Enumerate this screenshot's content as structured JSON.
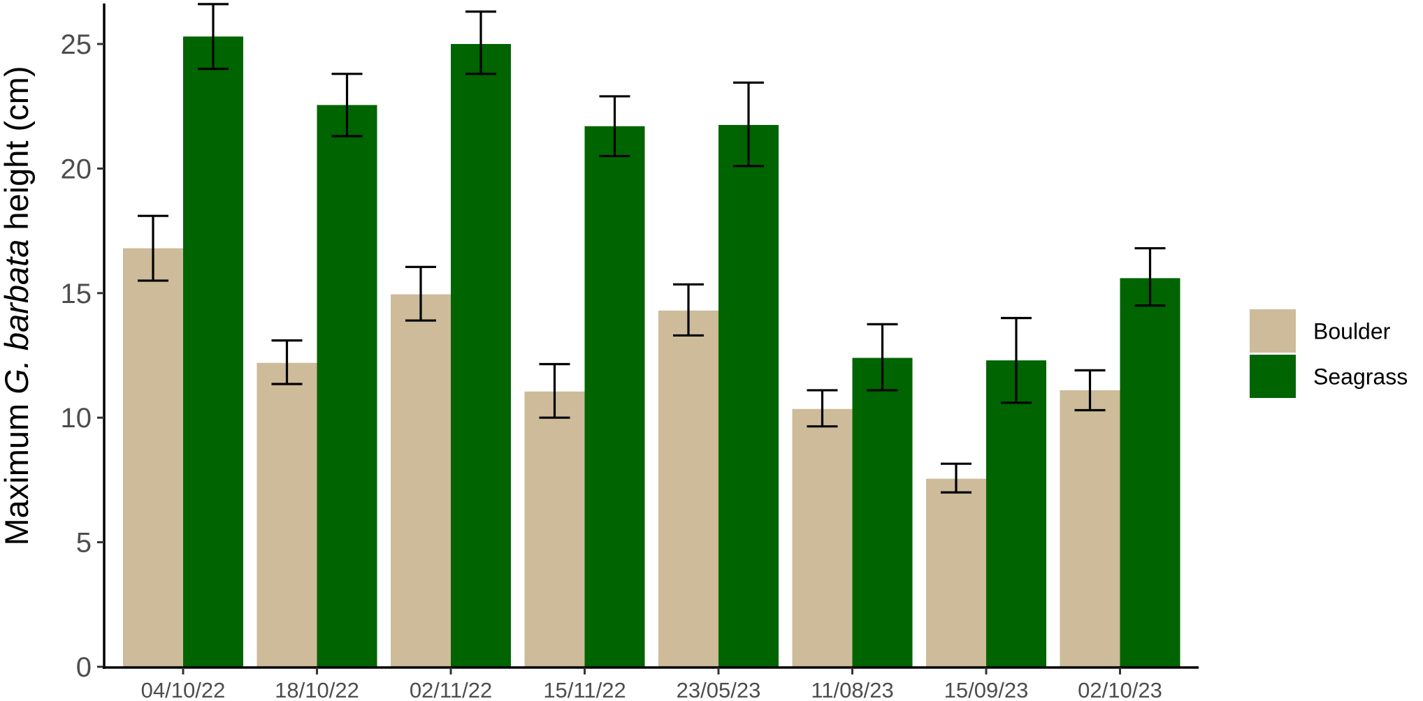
{
  "chart_data": {
    "type": "bar",
    "title": "",
    "xlabel": "",
    "ylabel": {
      "prefix": "Maximum ",
      "italic": "G. barbata",
      "suffix": " height (cm)"
    },
    "ylim": [
      0,
      26.5
    ],
    "yticks": [
      0,
      5,
      10,
      15,
      20,
      25
    ],
    "categories": [
      "04/10/22",
      "18/10/22",
      "02/11/22",
      "15/11/22",
      "23/05/23",
      "11/08/23",
      "15/09/23",
      "02/10/23"
    ],
    "series": [
      {
        "name": "Boulder",
        "color": "#cdbb99",
        "values": [
          16.8,
          12.2,
          14.95,
          11.05,
          14.3,
          10.35,
          7.55,
          11.1
        ],
        "error_low": [
          15.5,
          11.35,
          13.9,
          10.0,
          13.3,
          9.65,
          7.0,
          10.3
        ],
        "error_high": [
          18.1,
          13.1,
          16.05,
          12.15,
          15.35,
          11.1,
          8.15,
          11.9
        ]
      },
      {
        "name": "Seagrass",
        "color": "#006400",
        "values": [
          25.3,
          22.55,
          25.0,
          21.7,
          21.75,
          12.4,
          12.3,
          15.6
        ],
        "error_low": [
          24.0,
          21.3,
          23.8,
          20.5,
          20.1,
          11.1,
          10.6,
          14.5
        ],
        "error_high": [
          26.6,
          23.8,
          26.3,
          22.9,
          23.45,
          13.75,
          14.0,
          16.8
        ]
      }
    ],
    "grid": false,
    "legend_position": "right",
    "error_bar_color": "#000000"
  }
}
